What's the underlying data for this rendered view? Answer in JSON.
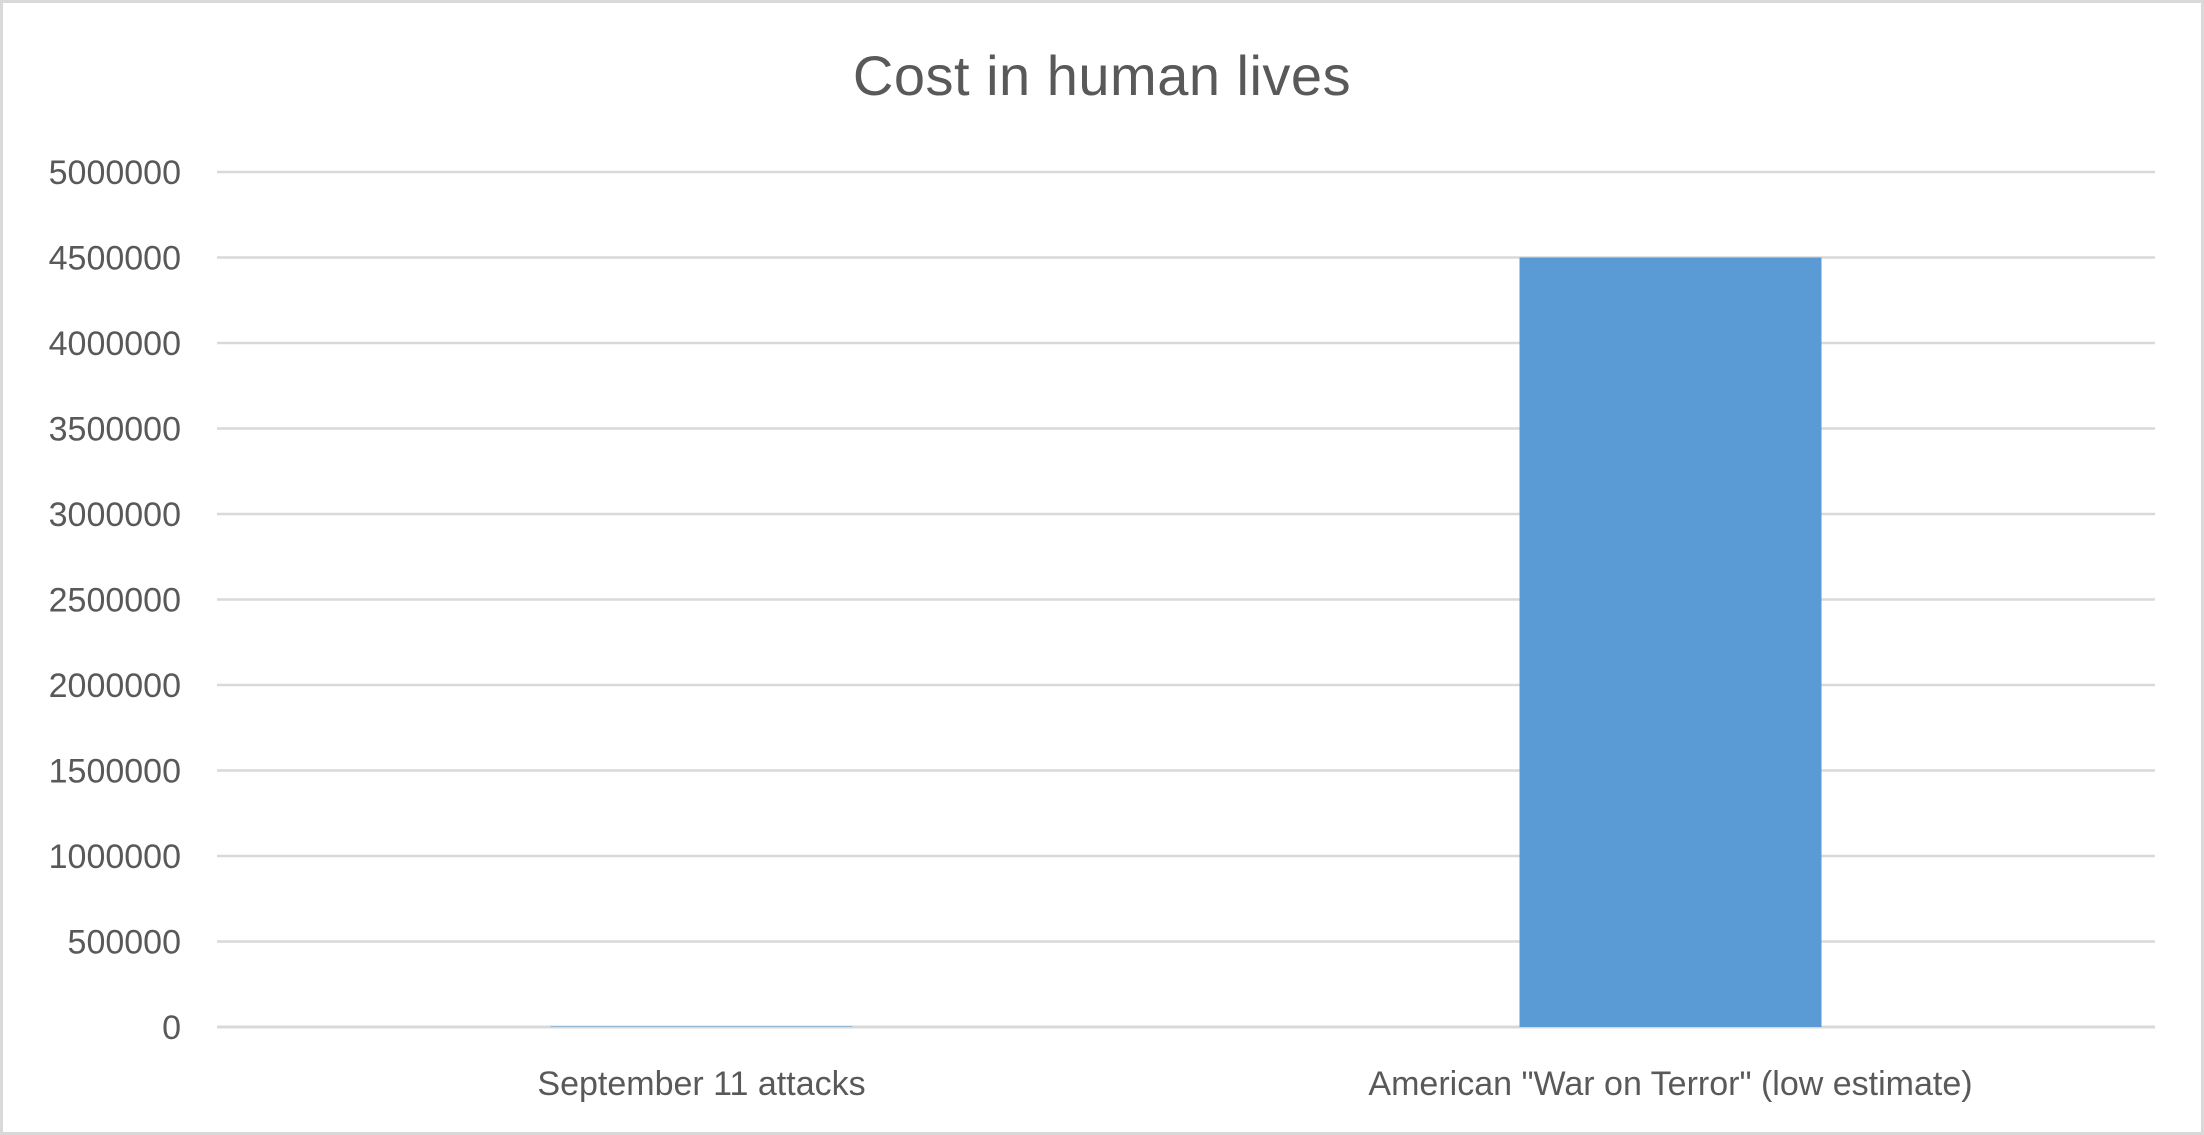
{
  "chart_data": {
    "type": "bar",
    "title": "Cost in human lives",
    "categories": [
      "September 11 attacks",
      "American \"War on Terror\" (low estimate)"
    ],
    "values": [
      2977,
      4500000
    ],
    "ylim": [
      0,
      5000000
    ],
    "y_ticks": [
      "0",
      "500000",
      "1000000",
      "1500000",
      "2000000",
      "2500000",
      "3000000",
      "3500000",
      "4000000",
      "4500000",
      "5000000"
    ],
    "grid": true,
    "legend": "none",
    "bar_color": "#5b9bd5",
    "grid_color": "#d9d9d9",
    "text_color": "#595959"
  }
}
